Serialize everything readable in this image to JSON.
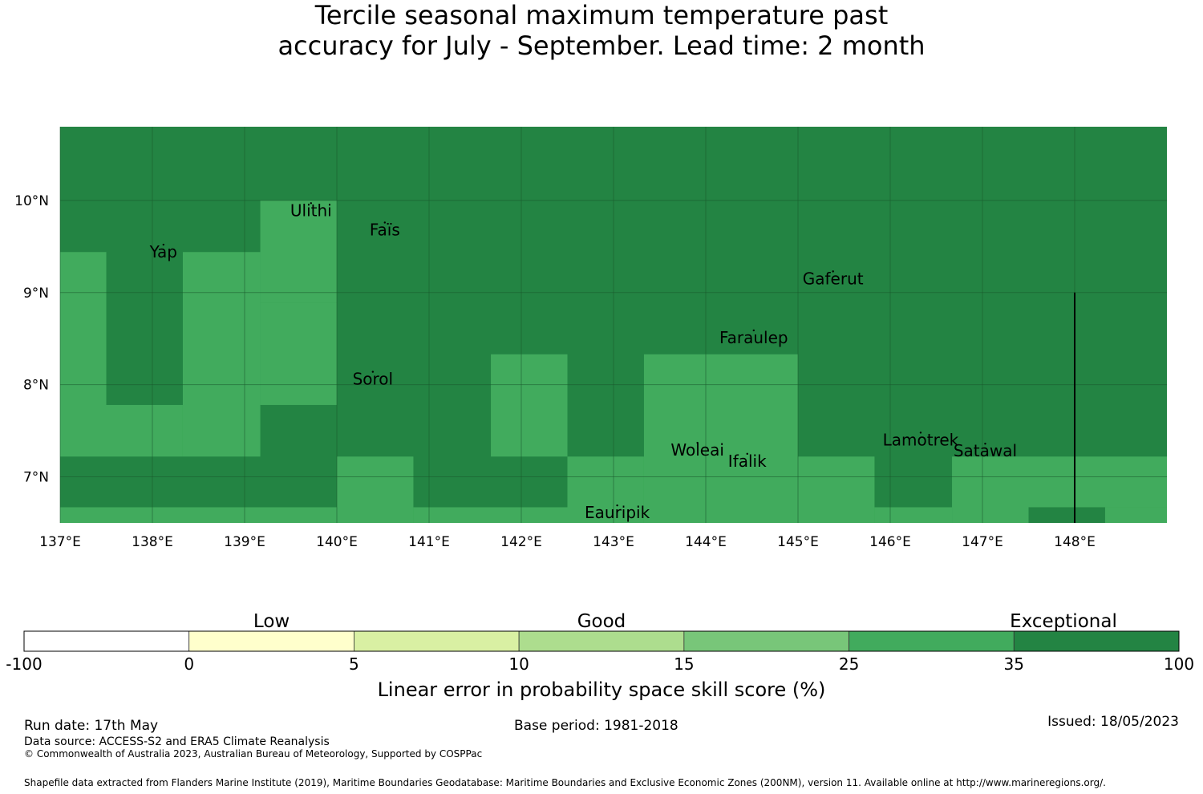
{
  "title": {
    "line1": "Tercile seasonal maximum temperature past",
    "line2": "accuracy for July - September. Lead time: 2 month"
  },
  "map": {
    "lon_range": [
      137.0,
      149.0
    ],
    "lat_range": [
      6.5,
      10.8
    ],
    "gridlines": true,
    "lat_ticks": [
      {
        "value": 10,
        "label": "10°N"
      },
      {
        "value": 9,
        "label": "9°N"
      },
      {
        "value": 8,
        "label": "8°N"
      },
      {
        "value": 7,
        "label": "7°N"
      }
    ],
    "lon_ticks": [
      {
        "value": 137,
        "label": "137°E"
      },
      {
        "value": 138,
        "label": "138°E"
      },
      {
        "value": 139,
        "label": "139°E"
      },
      {
        "value": 140,
        "label": "140°E"
      },
      {
        "value": 141,
        "label": "141°E"
      },
      {
        "value": 142,
        "label": "142°E"
      },
      {
        "value": 143,
        "label": "143°E"
      },
      {
        "value": 144,
        "label": "144°E"
      },
      {
        "value": 145,
        "label": "145°E"
      },
      {
        "value": 146,
        "label": "146°E"
      },
      {
        "value": 147,
        "label": "147°E"
      },
      {
        "value": 148,
        "label": "148°E"
      }
    ],
    "colors": {
      "exceptional": "#238443",
      "good_25_35": "#41ab5d",
      "gridline": "#1a5a2c",
      "boundary": "#000000"
    },
    "skill_blocks_25_35": [
      {
        "lon": [
          137.0,
          137.5
        ],
        "lat": [
          7.22,
          9.44
        ]
      },
      {
        "lon": [
          137.5,
          138.33
        ],
        "lat": [
          7.22,
          7.78
        ]
      },
      {
        "lon": [
          138.33,
          139.17
        ],
        "lat": [
          7.22,
          9.44
        ]
      },
      {
        "lon": [
          139.17,
          140.0
        ],
        "lat": [
          7.78,
          8.89
        ]
      },
      {
        "lon": [
          139.17,
          140.0
        ],
        "lat": [
          8.89,
          10.0
        ]
      },
      {
        "lon": [
          137.0,
          140.0
        ],
        "lat": [
          6.5,
          6.67
        ]
      },
      {
        "lon": [
          140.0,
          140.83
        ],
        "lat": [
          6.5,
          7.22
        ]
      },
      {
        "lon": [
          141.67,
          142.5
        ],
        "lat": [
          7.22,
          8.33
        ]
      },
      {
        "lon": [
          140.83,
          142.5
        ],
        "lat": [
          6.5,
          6.67
        ]
      },
      {
        "lon": [
          142.5,
          143.33
        ],
        "lat": [
          6.5,
          7.22
        ]
      },
      {
        "lon": [
          143.33,
          145.0
        ],
        "lat": [
          6.5,
          8.33
        ]
      },
      {
        "lon": [
          145.0,
          145.83
        ],
        "lat": [
          6.5,
          7.22
        ]
      },
      {
        "lon": [
          145.83,
          146.67
        ],
        "lat": [
          6.5,
          6.67
        ]
      },
      {
        "lon": [
          146.67,
          147.5
        ],
        "lat": [
          6.5,
          7.22
        ]
      },
      {
        "lon": [
          147.5,
          149.0
        ],
        "lat": [
          6.67,
          7.22
        ]
      },
      {
        "lon": [
          148.33,
          149.0
        ],
        "lat": [
          6.5,
          6.67
        ]
      }
    ],
    "boundary_line": {
      "lon": 148.0,
      "lat": [
        6.5,
        9.0
      ]
    },
    "places": [
      {
        "name": "Ulithi",
        "lon": 139.72,
        "lat": 9.97
      },
      {
        "name": "Faïs",
        "lon": 140.52,
        "lat": 9.76
      },
      {
        "name": "Yap",
        "lon": 138.12,
        "lat": 9.52
      },
      {
        "name": "Gaferut",
        "lon": 145.38,
        "lat": 9.23
      },
      {
        "name": "Faraulep",
        "lon": 144.52,
        "lat": 8.59
      },
      {
        "name": "Sorol",
        "lon": 140.39,
        "lat": 8.14
      },
      {
        "name": "Woleai",
        "lon": 143.91,
        "lat": 7.37
      },
      {
        "name": "Lamotrek",
        "lon": 146.33,
        "lat": 7.48
      },
      {
        "name": "Ifalik",
        "lon": 144.45,
        "lat": 7.25
      },
      {
        "name": "Satawal",
        "lon": 147.03,
        "lat": 7.36
      },
      {
        "name": "Eauripik",
        "lon": 143.04,
        "lat": 6.69
      }
    ]
  },
  "colorbar": {
    "categories": [
      "Low",
      "Good",
      "Exceptional"
    ],
    "tick_labels": [
      "-100",
      "0",
      "5",
      "10",
      "15",
      "25",
      "35",
      "100"
    ],
    "bin_colors": [
      "#ffffff",
      "#ffffcc",
      "#d9f0a3",
      "#addd8e",
      "#78c679",
      "#41ab5d",
      "#238443"
    ],
    "label": "Linear error in probability space skill score (%)"
  },
  "footer": {
    "run_date": "Run date: 17th May",
    "base_period": "Base period: 1981-2018",
    "issued": "Issued: 18/05/2023",
    "data_source": "Data source: ACCESS-S2 and ERA5 Climate Reanalysis",
    "copyright": "© Commonwealth of Australia 2023, Australian Bureau of Meteorology, Supported by COSPPac",
    "shapefile": "Shapefile data extracted from Flanders Marine Institute (2019), Maritime Boundaries Geodatabase: Maritime Boundaries and Exclusive Economic Zones (200NM), version 11. Available online at http://www.marineregions.org/."
  }
}
